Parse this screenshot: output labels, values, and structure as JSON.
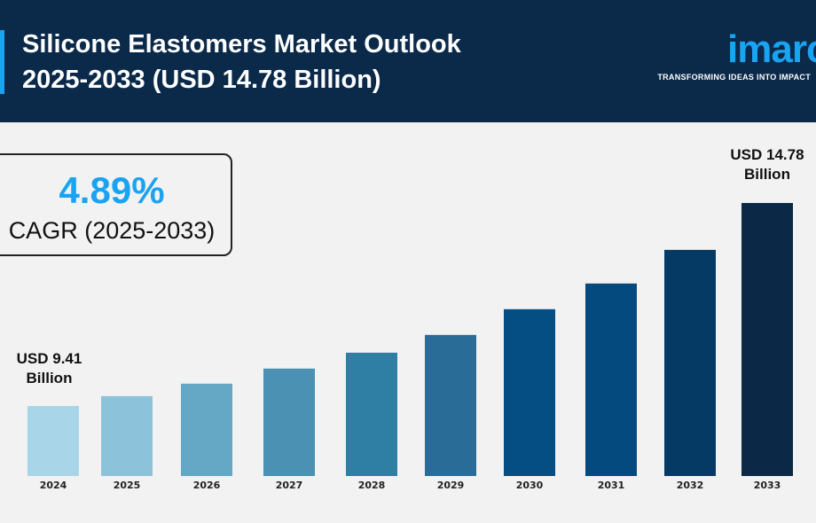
{
  "header": {
    "title_line1": "Silicone Elastomers Market Outlook",
    "title_line2": "2025-2033 (USD 14.78 Billion)",
    "logo_text": "imarc",
    "logo_tagline": "TRANSFORMING IDEAS INTO IMPACT",
    "background_color": "#0b2a4a",
    "accent_color": "#1aa3f0"
  },
  "cagr": {
    "value": "4.89%",
    "label": "CAGR (2025-2033)"
  },
  "chart_data": {
    "type": "bar",
    "title": "",
    "xlabel": "",
    "ylabel": "",
    "unit": "USD Billion",
    "categories": [
      "2024",
      "2025",
      "2026",
      "2027",
      "2028",
      "2029",
      "2030",
      "2031",
      "2032",
      "2033"
    ],
    "values": [
      9.41,
      9.67,
      10.0,
      10.4,
      10.82,
      11.29,
      11.97,
      12.65,
      13.54,
      14.78
    ],
    "colors": [
      "#a8d5e7",
      "#8cc2da",
      "#65a8c6",
      "#4a91b3",
      "#2f7ea3",
      "#2a6c98",
      "#044e84",
      "#054a7e",
      "#053a65",
      "#0b2847"
    ],
    "annotations": [
      {
        "category": "2024",
        "line1": "USD 9.41",
        "line2": "Billion"
      },
      {
        "category": "2033",
        "line1": "USD 14.78",
        "line2": "Billion"
      }
    ],
    "grid": false,
    "legend": "none"
  }
}
